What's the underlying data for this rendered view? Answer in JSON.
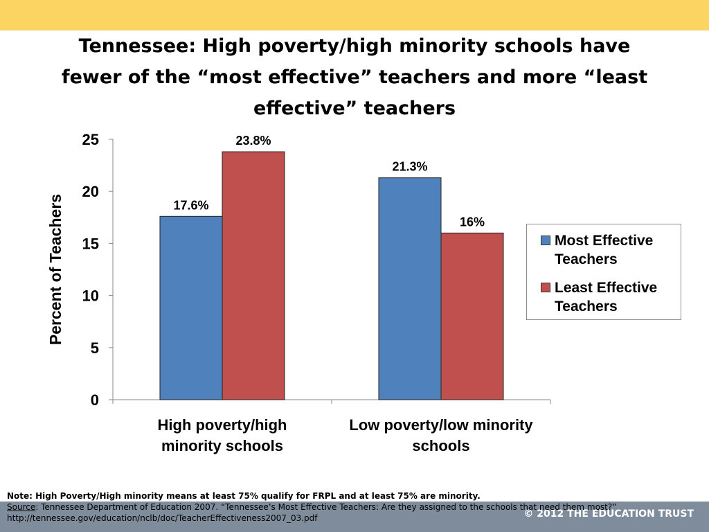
{
  "colors": {
    "top_band": "#fcd462",
    "footer_band": "#7f8c9b",
    "most_effective": "#4f81bd",
    "least_effective": "#c0504d"
  },
  "slide": {
    "title_lines": [
      "Tennessee:  High poverty/high minority schools have",
      "fewer of the “most effective” teachers and more “least",
      "effective” teachers"
    ]
  },
  "chart_data": {
    "type": "bar",
    "title": "",
    "ylabel": "Percent of Teachers",
    "xlabel": "",
    "ylim": [
      0,
      25
    ],
    "yticks": [
      0,
      5,
      10,
      15,
      20,
      25
    ],
    "categories": [
      [
        "High poverty/high",
        "minority schools"
      ],
      [
        "Low poverty/low minority",
        "schools"
      ]
    ],
    "series": [
      {
        "name": "Most Effective Teachers",
        "values": [
          17.6,
          21.3
        ],
        "labels": [
          "17.6%",
          "21.3%"
        ],
        "color": "#4f81bd"
      },
      {
        "name": "Least Effective Teachers",
        "values": [
          23.8,
          16
        ],
        "labels": [
          "23.8%",
          "16%"
        ],
        "color": "#c0504d"
      }
    ],
    "legend": {
      "position": "right",
      "items": [
        [
          "Most Effective",
          "Teachers"
        ],
        [
          "Least Effective",
          "Teachers"
        ]
      ]
    },
    "grid": false
  },
  "footer": {
    "note": "Note:  High Poverty/High minority means at least 75% qualify for FRPL and at least 75% are minority.",
    "source_label": "Source",
    "source_text": ":  Tennessee Department of Education 2007. “Tennessee’s Most Effective Teachers: Are they assigned to the schools that need them most?” http://tennessee.gov/education/nclb/doc/TeacherEffectiveness2007_03.pdf",
    "copyright": "© 2012 THE EDUCATION TRUST"
  }
}
